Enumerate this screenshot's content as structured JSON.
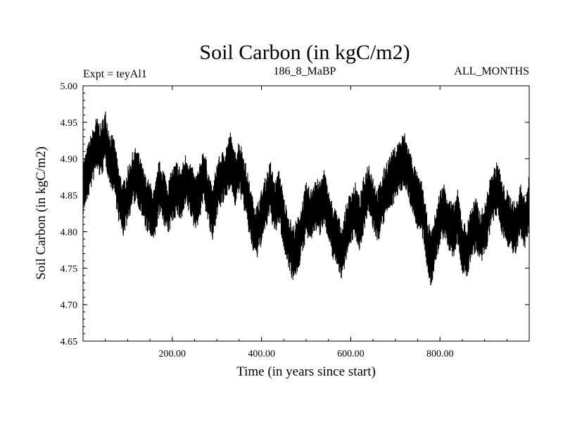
{
  "chart_data": {
    "type": "line",
    "title": "Soil Carbon (in kgC/m2)",
    "subtitle_left": "Expt = teyAl1",
    "subtitle_center": "186_8_MaBP",
    "subtitle_right": "ALL_MONTHS",
    "xlabel": "Time (in years since start)",
    "ylabel": "Soil Carbon (in kgC/m2)",
    "xlim": [
      0,
      1000
    ],
    "ylim": [
      4.65,
      5.0
    ],
    "x_ticks": [
      200,
      400,
      600,
      800
    ],
    "x_tick_labels": [
      "200.00",
      "400.00",
      "600.00",
      "800.00"
    ],
    "y_ticks": [
      4.65,
      4.7,
      4.75,
      4.8,
      4.85,
      4.9,
      4.95,
      5.0
    ],
    "y_tick_labels": [
      "4.65",
      "4.70",
      "4.75",
      "4.80",
      "4.85",
      "4.90",
      "4.95",
      "5.00"
    ],
    "grid": false,
    "series": [
      {
        "name": "Soil Carbon",
        "color": "#000000",
        "note": "Monthly series (~12000 points); trend values sampled every 10 years with high-frequency band of about ±0.03",
        "x": [
          0,
          10,
          20,
          30,
          40,
          50,
          60,
          70,
          80,
          90,
          100,
          110,
          120,
          130,
          140,
          150,
          160,
          170,
          180,
          190,
          200,
          210,
          220,
          230,
          240,
          250,
          260,
          270,
          280,
          290,
          300,
          310,
          320,
          330,
          340,
          350,
          360,
          370,
          380,
          390,
          400,
          410,
          420,
          430,
          440,
          450,
          460,
          470,
          480,
          490,
          500,
          510,
          520,
          530,
          540,
          550,
          560,
          570,
          580,
          590,
          600,
          610,
          620,
          630,
          640,
          650,
          660,
          670,
          680,
          690,
          700,
          710,
          720,
          730,
          740,
          750,
          760,
          770,
          780,
          790,
          800,
          810,
          820,
          830,
          840,
          850,
          860,
          870,
          880,
          890,
          900,
          910,
          920,
          930,
          940,
          950,
          960,
          970,
          980,
          990,
          1000
        ],
        "values": [
          4.86,
          4.88,
          4.9,
          4.92,
          4.91,
          4.93,
          4.9,
          4.89,
          4.85,
          4.83,
          4.85,
          4.87,
          4.88,
          4.86,
          4.84,
          4.83,
          4.82,
          4.86,
          4.85,
          4.83,
          4.85,
          4.86,
          4.85,
          4.87,
          4.86,
          4.84,
          4.85,
          4.88,
          4.85,
          4.82,
          4.86,
          4.87,
          4.88,
          4.9,
          4.87,
          4.89,
          4.87,
          4.84,
          4.81,
          4.8,
          4.82,
          4.84,
          4.86,
          4.83,
          4.85,
          4.81,
          4.79,
          4.77,
          4.78,
          4.8,
          4.83,
          4.82,
          4.84,
          4.83,
          4.85,
          4.82,
          4.8,
          4.79,
          4.77,
          4.8,
          4.82,
          4.83,
          4.81,
          4.84,
          4.86,
          4.84,
          4.82,
          4.84,
          4.86,
          4.87,
          4.88,
          4.89,
          4.9,
          4.88,
          4.86,
          4.84,
          4.83,
          4.79,
          4.76,
          4.79,
          4.82,
          4.83,
          4.81,
          4.8,
          4.82,
          4.78,
          4.77,
          4.8,
          4.81,
          4.79,
          4.8,
          4.83,
          4.85,
          4.86,
          4.83,
          4.82,
          4.81,
          4.8,
          4.83,
          4.81,
          4.84
        ]
      }
    ]
  }
}
